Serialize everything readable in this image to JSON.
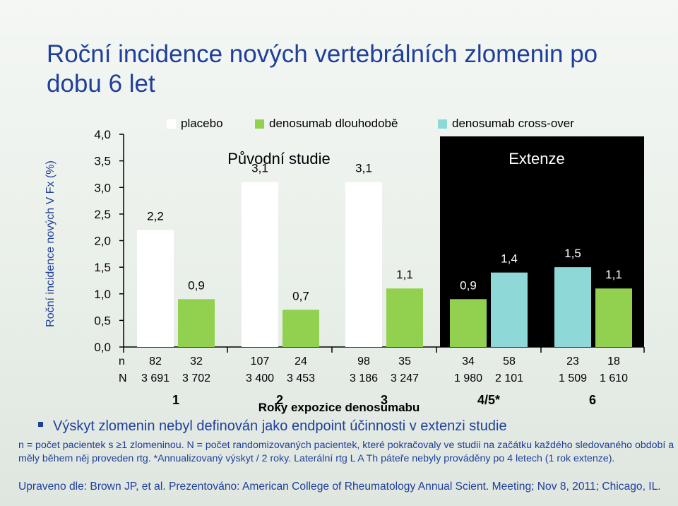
{
  "title": "Roční incidence nových vertebrálních zlomenin po dobu 6 let",
  "legend": [
    {
      "label": "placebo",
      "color": "#ffffff"
    },
    {
      "label": "denosumab dlouhodobě",
      "color": "#92d050"
    },
    {
      "label": "denosumab cross-over",
      "color": "#8ed8d8"
    }
  ],
  "section_labels": {
    "original": "Původní studie",
    "extension": "Extenze"
  },
  "row_labels": {
    "n": "n",
    "N": "N"
  },
  "footer": {
    "bullet": "Výskyt zlomenin nebyl definován jako endpoint účinnosti v extenzi studie",
    "footnote": "n = počet pacientek s ≥1 zlomeninou. N = počet randomizovaných pacientek, které pokračovaly ve studii na začátku každého sledovaného období a měly během něj proveden rtg. *Annualizovaný výskyt / 2 roky. Laterální rtg L A Th páteře nebyly prováděny po 4 letech (1 rok extenze).",
    "source": "Upraveno dle: Brown JP, et al. Prezentováno: American College of Rheumatology Annual Scient. Meeting; Nov 8, 2011; Chicago, IL."
  },
  "chart_data": {
    "type": "bar",
    "title": "Roční incidence nových vertebrálních zlomenin po dobu 6 let",
    "xlabel": "Roky expozice denosumabu",
    "ylabel": "Roční incidence nových V Fx (%)",
    "ylim": [
      0,
      4.0
    ],
    "yticks": [
      "0,0",
      "0,5",
      "1,0",
      "1,5",
      "2,0",
      "2,5",
      "3,0",
      "3,5",
      "4,0"
    ],
    "categories": [
      "1",
      "2",
      "3",
      "4/5*",
      "6"
    ],
    "grid": false,
    "legend_position": "top",
    "bars": [
      {
        "group": 0,
        "series": "placebo",
        "value": 2.2,
        "label": "2,2",
        "n": "82",
        "N": "3 691"
      },
      {
        "group": 0,
        "series": "denosumab dlouhodobě",
        "value": 0.9,
        "label": "0,9",
        "n": "32",
        "N": "3 702"
      },
      {
        "group": 1,
        "series": "placebo",
        "value": 3.1,
        "label": "3,1",
        "n": "107",
        "N": "3 400"
      },
      {
        "group": 1,
        "series": "denosumab dlouhodobě",
        "value": 0.7,
        "label": "0,7",
        "n": "24",
        "N": "3 453"
      },
      {
        "group": 2,
        "series": "placebo",
        "value": 3.1,
        "label": "3,1",
        "n": "98",
        "N": "3 186"
      },
      {
        "group": 2,
        "series": "denosumab dlouhodobě",
        "value": 1.1,
        "label": "1,1",
        "n": "35",
        "N": "3 247"
      },
      {
        "group": 3,
        "series": "denosumab dlouhodobě",
        "value": 0.9,
        "label": "0,9",
        "n": "34",
        "N": "1 980"
      },
      {
        "group": 3,
        "series": "denosumab cross-over",
        "value": 1.4,
        "label": "1,4",
        "n": "58",
        "N": "2 101"
      },
      {
        "group": 4,
        "series": "denosumab cross-over",
        "value": 1.5,
        "label": "1,5",
        "n": "23",
        "N": "1 509"
      },
      {
        "group": 4,
        "series": "denosumab dlouhodobě",
        "value": 1.1,
        "label": "1,1",
        "n": "18",
        "N": "1 610"
      }
    ]
  }
}
